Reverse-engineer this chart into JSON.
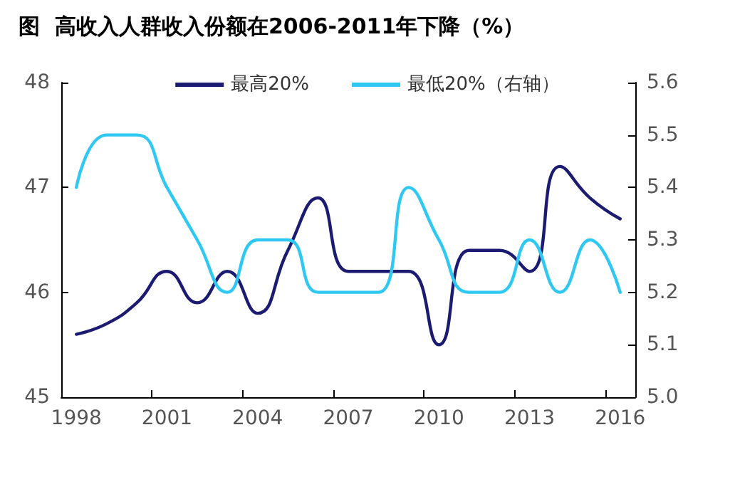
{
  "chart_data": {
    "type": "line",
    "title": "图  高收入人群收入份额在2006-2011年下降（%）",
    "categories": [
      "1998",
      null,
      null,
      "2001",
      null,
      null,
      "2004",
      null,
      null,
      "2007",
      null,
      null,
      "2010",
      null,
      null,
      "2013",
      null,
      null,
      "2016"
    ],
    "series": [
      {
        "name": "最高20%",
        "color": "#1b1b72",
        "values": [
          45.6,
          45.7,
          45.9,
          46.2,
          45.9,
          46.2,
          45.8,
          46.4,
          46.9,
          46.2,
          46.2,
          46.2,
          45.5,
          46.4,
          46.4,
          46.2,
          47.2,
          46.9,
          46.7
        ]
      },
      {
        "name": "最低20%（右轴）",
        "color": "#2ec8f2",
        "axis": "y2",
        "values": [
          5.4,
          5.5,
          5.5,
          5.4,
          5.3,
          5.2,
          5.3,
          5.3,
          5.2,
          5.2,
          5.2,
          5.4,
          5.3,
          5.2,
          5.2,
          5.3,
          5.2,
          5.3,
          5.2
        ]
      }
    ],
    "ylim": [
      45,
      48
    ],
    "yticks": [
      45,
      46,
      47,
      48
    ],
    "y2lim": [
      5.0,
      5.6
    ],
    "y2ticks": [
      {
        "value": 5,
        "label": "5.0"
      },
      5.1,
      5.2,
      5.3,
      5.4,
      5.5,
      5.6
    ],
    "grid": false,
    "legend": "top",
    "marker": "none",
    "line_style": "solid"
  }
}
